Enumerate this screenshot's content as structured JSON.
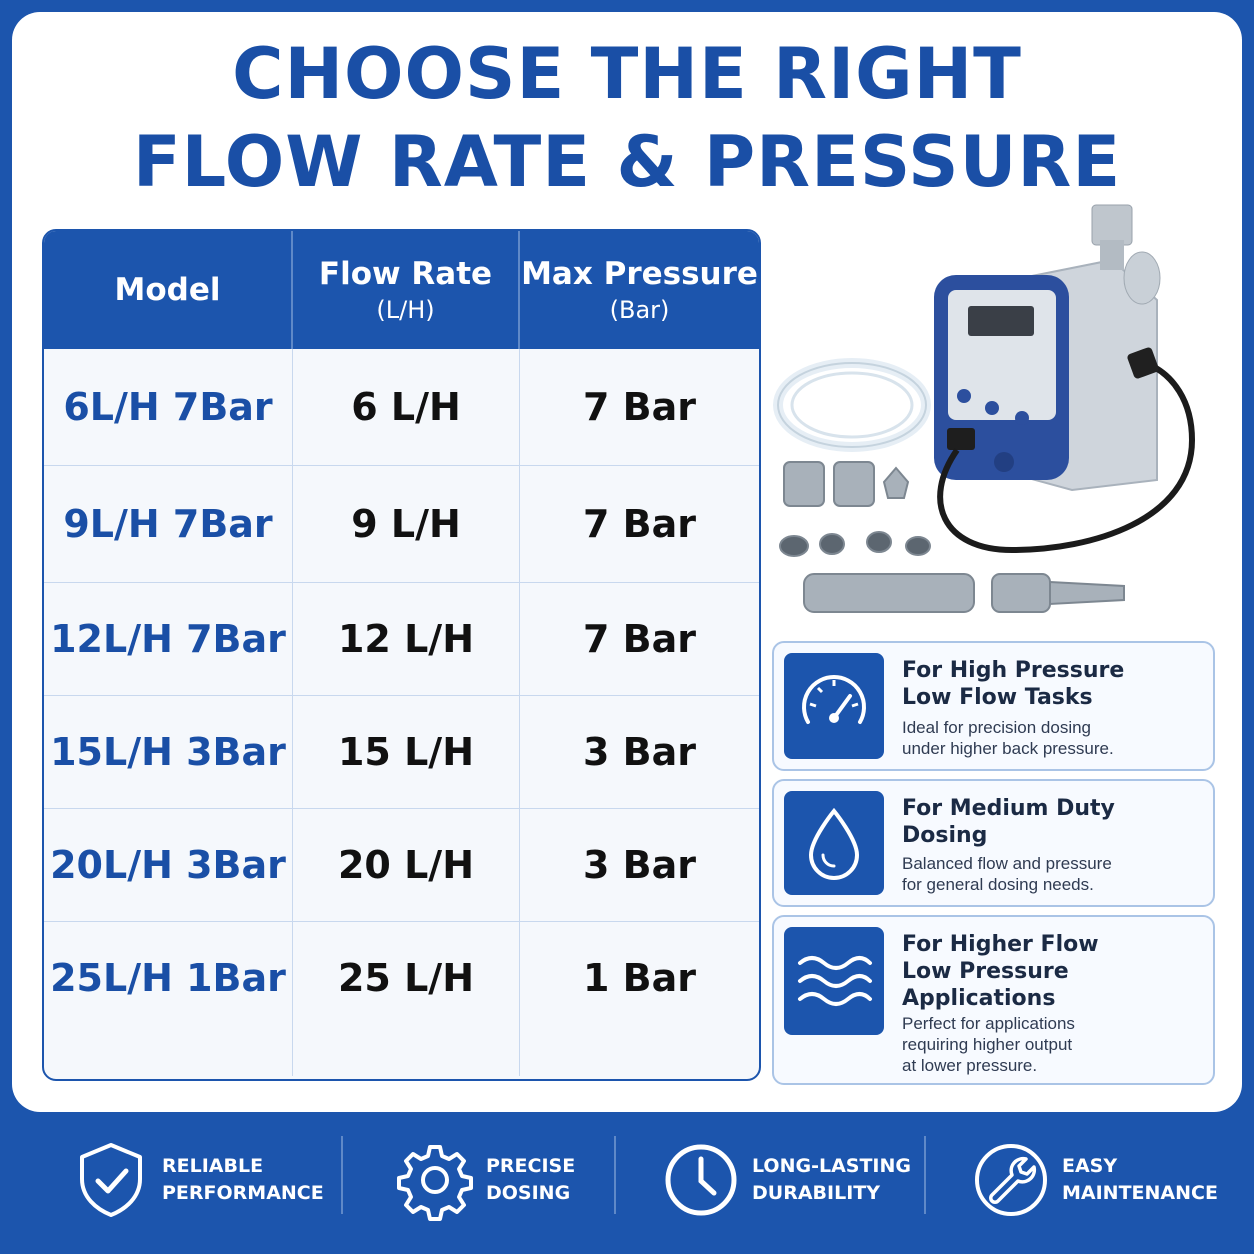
{
  "headline": {
    "line1": "CHOOSE THE RIGHT",
    "line2": "FLOW RATE & PRESSURE"
  },
  "table": {
    "headers": [
      {
        "main": "Model",
        "sub": ""
      },
      {
        "main": "Flow Rate",
        "sub": "(L/H)"
      },
      {
        "main": "Max Pressure",
        "sub": "(Bar)"
      }
    ],
    "rows": [
      {
        "model": "6L/H 7Bar",
        "flow": "6 L/H",
        "pressure": "7 Bar"
      },
      {
        "model": "9L/H 7Bar",
        "flow": "9 L/H",
        "pressure": "7 Bar"
      },
      {
        "model": "12L/H 7Bar",
        "flow": "12 L/H",
        "pressure": "7 Bar"
      },
      {
        "model": "15L/H 3Bar",
        "flow": "15 L/H",
        "pressure": "3 Bar"
      },
      {
        "model": "20L/H 3Bar",
        "flow": "20 L/H",
        "pressure": "3 Bar"
      },
      {
        "model": "25L/H 1Bar",
        "flow": "25 L/H",
        "pressure": "1 Bar"
      }
    ]
  },
  "cards": [
    {
      "icon": "gauge-icon",
      "title": "For High Pressure\nLow Flow Tasks",
      "desc": "Ideal for precision dosing\nunder higher back pressure."
    },
    {
      "icon": "water-drop-icon",
      "title": "For Medium Duty\nDosing",
      "desc": "Balanced flow and pressure\nfor general dosing needs."
    },
    {
      "icon": "waves-icon",
      "title": "For Higher Flow\nLow Pressure\nApplications",
      "desc": "Perfect for applications\nrequiring higher output\nat lower pressure."
    }
  ],
  "features": [
    {
      "icon": "shield-check-icon",
      "label": "RELIABLE\nPERFORMANCE"
    },
    {
      "icon": "gear-icon",
      "label": "PRECISE\nDOSING"
    },
    {
      "icon": "clock-icon",
      "label": "LONG-LASTING\nDURABILITY"
    },
    {
      "icon": "wrench-icon",
      "label": "EASY\nMAINTENANCE"
    }
  ],
  "colors": {
    "brand": "#1c55ad",
    "text": "#111111",
    "panel": "#ffffff"
  }
}
